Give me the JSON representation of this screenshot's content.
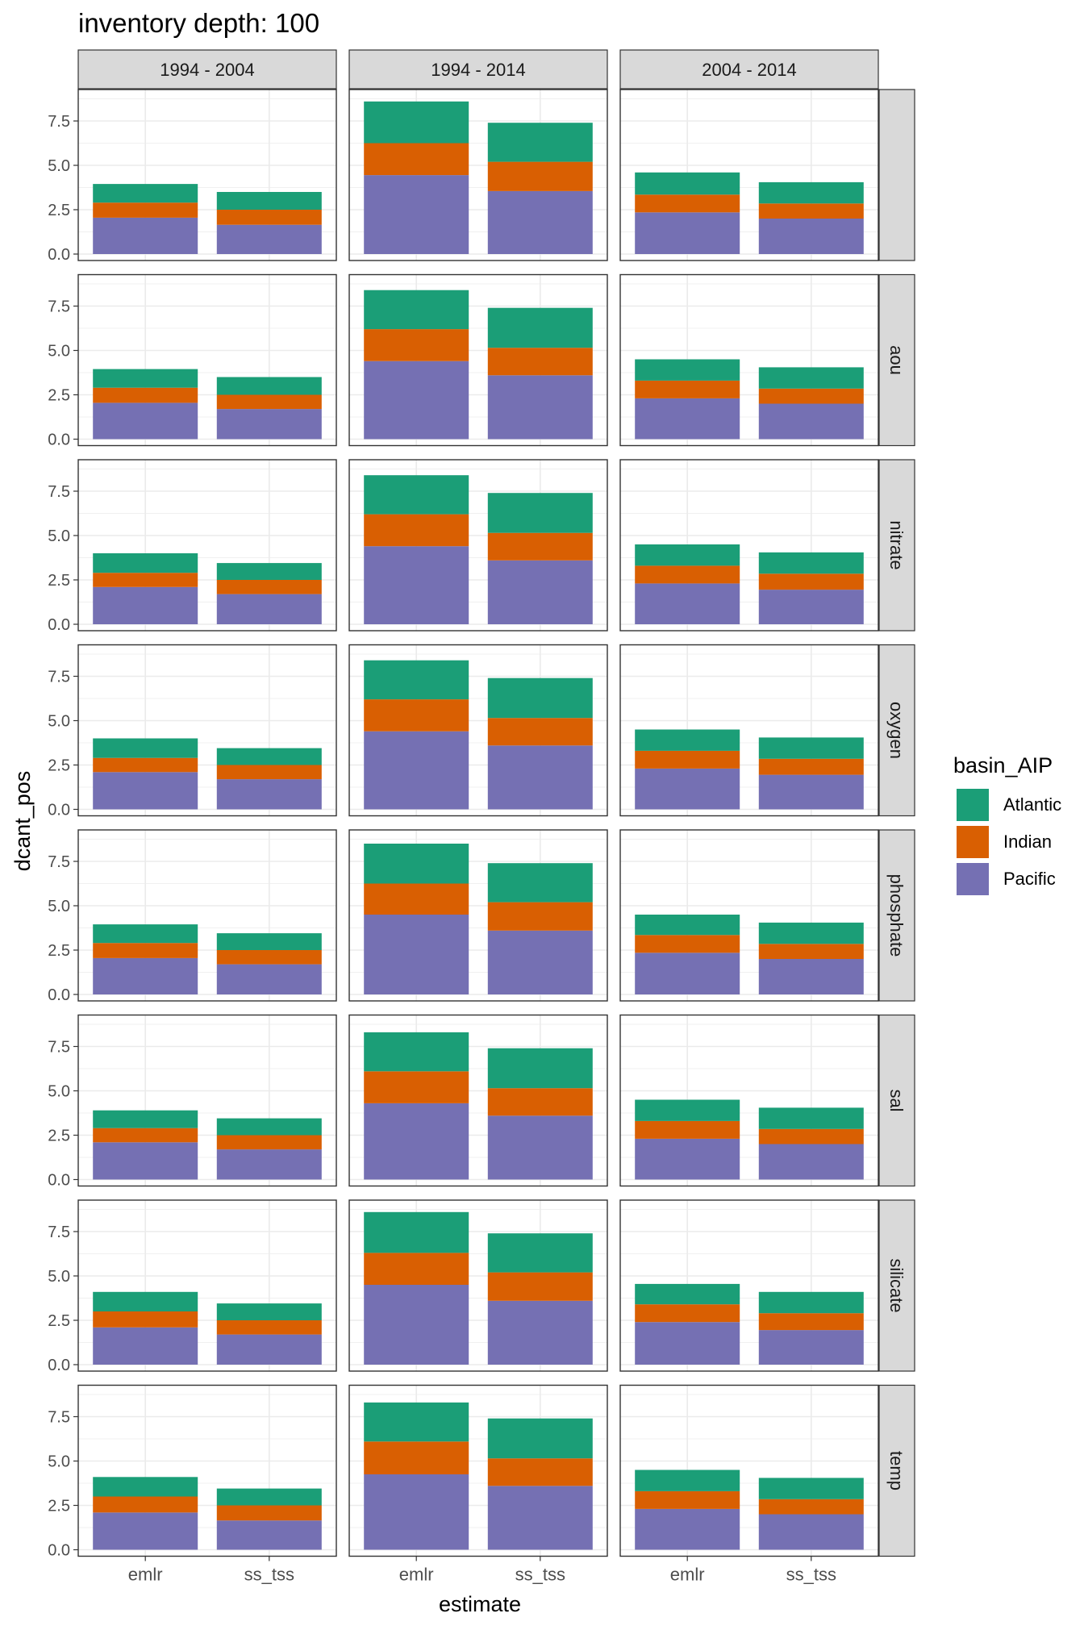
{
  "chart_data": {
    "type": "bar",
    "stacked": true,
    "title": "inventory depth: 100",
    "xlabel": "estimate",
    "ylabel": "dcant_pos",
    "ylim": [
      0,
      9
    ],
    "yticks": [
      0.0,
      2.5,
      5.0,
      7.5
    ],
    "ytick_labels": [
      "0.0",
      "2.5",
      "5.0",
      "7.5"
    ],
    "categories": [
      "emlr",
      "ss_tss"
    ],
    "col_facets": [
      "1994 - 2004",
      "1994 - 2014",
      "2004 - 2014"
    ],
    "row_facets": [
      "",
      "aou",
      "nitrate",
      "oxygen",
      "phosphate",
      "sal",
      "silicate",
      "temp"
    ],
    "legend": {
      "title": "basin_AIP",
      "position": "right",
      "entries": [
        {
          "name": "Atlantic",
          "color": "#1B9E77"
        },
        {
          "name": "Indian",
          "color": "#D95F02"
        },
        {
          "name": "Pacific",
          "color": "#7570B3"
        }
      ]
    },
    "stack_order": [
      "Pacific",
      "Indian",
      "Atlantic"
    ],
    "series_colors": {
      "Atlantic": "#1B9E77",
      "Indian": "#D95F02",
      "Pacific": "#7570B3"
    },
    "panels": [
      [
        {
          "emlr": {
            "Pacific": 2.05,
            "Indian": 0.85,
            "Atlantic": 1.05
          },
          "ss_tss": {
            "Pacific": 1.65,
            "Indian": 0.85,
            "Atlantic": 1.0
          }
        },
        {
          "emlr": {
            "Pacific": 4.45,
            "Indian": 1.8,
            "Atlantic": 2.35
          },
          "ss_tss": {
            "Pacific": 3.55,
            "Indian": 1.65,
            "Atlantic": 2.2
          }
        },
        {
          "emlr": {
            "Pacific": 2.35,
            "Indian": 1.0,
            "Atlantic": 1.25
          },
          "ss_tss": {
            "Pacific": 2.0,
            "Indian": 0.85,
            "Atlantic": 1.2
          }
        }
      ],
      [
        {
          "emlr": {
            "Pacific": 2.05,
            "Indian": 0.85,
            "Atlantic": 1.05
          },
          "ss_tss": {
            "Pacific": 1.7,
            "Indian": 0.8,
            "Atlantic": 1.0
          }
        },
        {
          "emlr": {
            "Pacific": 4.4,
            "Indian": 1.8,
            "Atlantic": 2.2
          },
          "ss_tss": {
            "Pacific": 3.6,
            "Indian": 1.55,
            "Atlantic": 2.25
          }
        },
        {
          "emlr": {
            "Pacific": 2.3,
            "Indian": 1.0,
            "Atlantic": 1.2
          },
          "ss_tss": {
            "Pacific": 2.0,
            "Indian": 0.85,
            "Atlantic": 1.2
          }
        }
      ],
      [
        {
          "emlr": {
            "Pacific": 2.1,
            "Indian": 0.8,
            "Atlantic": 1.1
          },
          "ss_tss": {
            "Pacific": 1.7,
            "Indian": 0.8,
            "Atlantic": 0.95
          }
        },
        {
          "emlr": {
            "Pacific": 4.4,
            "Indian": 1.8,
            "Atlantic": 2.2
          },
          "ss_tss": {
            "Pacific": 3.6,
            "Indian": 1.55,
            "Atlantic": 2.25
          }
        },
        {
          "emlr": {
            "Pacific": 2.3,
            "Indian": 1.0,
            "Atlantic": 1.2
          },
          "ss_tss": {
            "Pacific": 1.95,
            "Indian": 0.9,
            "Atlantic": 1.2
          }
        }
      ],
      [
        {
          "emlr": {
            "Pacific": 2.1,
            "Indian": 0.8,
            "Atlantic": 1.1
          },
          "ss_tss": {
            "Pacific": 1.7,
            "Indian": 0.8,
            "Atlantic": 0.95
          }
        },
        {
          "emlr": {
            "Pacific": 4.4,
            "Indian": 1.8,
            "Atlantic": 2.2
          },
          "ss_tss": {
            "Pacific": 3.6,
            "Indian": 1.55,
            "Atlantic": 2.25
          }
        },
        {
          "emlr": {
            "Pacific": 2.3,
            "Indian": 1.0,
            "Atlantic": 1.2
          },
          "ss_tss": {
            "Pacific": 1.95,
            "Indian": 0.9,
            "Atlantic": 1.2
          }
        }
      ],
      [
        {
          "emlr": {
            "Pacific": 2.05,
            "Indian": 0.85,
            "Atlantic": 1.05
          },
          "ss_tss": {
            "Pacific": 1.7,
            "Indian": 0.8,
            "Atlantic": 0.95
          }
        },
        {
          "emlr": {
            "Pacific": 4.5,
            "Indian": 1.75,
            "Atlantic": 2.25
          },
          "ss_tss": {
            "Pacific": 3.6,
            "Indian": 1.6,
            "Atlantic": 2.2
          }
        },
        {
          "emlr": {
            "Pacific": 2.35,
            "Indian": 1.0,
            "Atlantic": 1.15
          },
          "ss_tss": {
            "Pacific": 2.0,
            "Indian": 0.85,
            "Atlantic": 1.2
          }
        }
      ],
      [
        {
          "emlr": {
            "Pacific": 2.1,
            "Indian": 0.8,
            "Atlantic": 1.0
          },
          "ss_tss": {
            "Pacific": 1.7,
            "Indian": 0.8,
            "Atlantic": 0.95
          }
        },
        {
          "emlr": {
            "Pacific": 4.3,
            "Indian": 1.8,
            "Atlantic": 2.2
          },
          "ss_tss": {
            "Pacific": 3.6,
            "Indian": 1.55,
            "Atlantic": 2.25
          }
        },
        {
          "emlr": {
            "Pacific": 2.3,
            "Indian": 1.0,
            "Atlantic": 1.2
          },
          "ss_tss": {
            "Pacific": 2.0,
            "Indian": 0.85,
            "Atlantic": 1.2
          }
        }
      ],
      [
        {
          "emlr": {
            "Pacific": 2.1,
            "Indian": 0.9,
            "Atlantic": 1.1
          },
          "ss_tss": {
            "Pacific": 1.7,
            "Indian": 0.8,
            "Atlantic": 0.95
          }
        },
        {
          "emlr": {
            "Pacific": 4.5,
            "Indian": 1.8,
            "Atlantic": 2.3
          },
          "ss_tss": {
            "Pacific": 3.6,
            "Indian": 1.6,
            "Atlantic": 2.2
          }
        },
        {
          "emlr": {
            "Pacific": 2.4,
            "Indian": 1.0,
            "Atlantic": 1.15
          },
          "ss_tss": {
            "Pacific": 1.95,
            "Indian": 0.95,
            "Atlantic": 1.2
          }
        }
      ],
      [
        {
          "emlr": {
            "Pacific": 2.1,
            "Indian": 0.9,
            "Atlantic": 1.1
          },
          "ss_tss": {
            "Pacific": 1.65,
            "Indian": 0.85,
            "Atlantic": 0.95
          }
        },
        {
          "emlr": {
            "Pacific": 4.25,
            "Indian": 1.85,
            "Atlantic": 2.2
          },
          "ss_tss": {
            "Pacific": 3.6,
            "Indian": 1.55,
            "Atlantic": 2.25
          }
        },
        {
          "emlr": {
            "Pacific": 2.3,
            "Indian": 1.0,
            "Atlantic": 1.2
          },
          "ss_tss": {
            "Pacific": 2.0,
            "Indian": 0.85,
            "Atlantic": 1.2
          }
        }
      ]
    ]
  }
}
